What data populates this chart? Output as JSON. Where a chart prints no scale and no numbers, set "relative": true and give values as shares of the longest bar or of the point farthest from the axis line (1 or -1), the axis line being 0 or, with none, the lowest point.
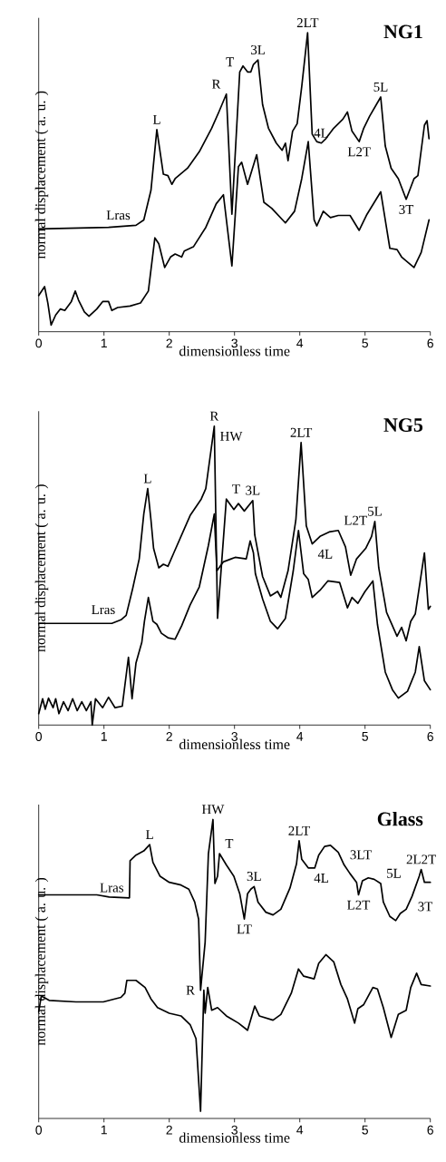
{
  "chart_data": [
    {
      "type": "line",
      "title": "NG1",
      "xlabel": "dimensionless time",
      "ylabel": "normal displacement ( a. u. )",
      "relative": true,
      "xlim": [
        0,
        6
      ],
      "xticks": [
        0,
        1,
        2,
        3,
        4,
        5,
        6
      ],
      "tick_labels": "x",
      "series": [
        {
          "color": "#000000",
          "x": [
            0,
            1.07,
            1.49,
            1.61,
            1.72,
            1.81,
            1.91,
            1.98,
            2.04,
            2.09,
            2.28,
            2.46,
            2.65,
            2.76,
            2.875,
            2.96,
            3.08,
            3.13,
            3.2,
            3.25,
            3.29,
            3.36,
            3.43,
            3.52,
            3.64,
            3.73,
            3.78,
            3.82,
            3.89,
            3.96,
            4.03,
            4.12,
            4.19,
            4.26,
            4.33,
            4.4,
            4.52,
            4.59,
            4.66,
            4.73,
            4.8,
            4.91,
            4.98,
            5.07,
            5.24,
            5.31,
            5.4,
            5.51,
            5.63,
            5.75,
            5.81,
            5.91,
            5.95,
            5.98
          ],
          "values": [
            0.344,
            0.349,
            0.356,
            0.374,
            0.473,
            0.676,
            0.527,
            0.522,
            0.493,
            0.512,
            0.547,
            0.602,
            0.681,
            0.735,
            0.795,
            0.393,
            0.869,
            0.889,
            0.869,
            0.869,
            0.894,
            0.909,
            0.76,
            0.681,
            0.631,
            0.607,
            0.631,
            0.572,
            0.671,
            0.696,
            0.82,
            1.0,
            0.661,
            0.636,
            0.631,
            0.646,
            0.681,
            0.696,
            0.711,
            0.735,
            0.671,
            0.636,
            0.681,
            0.721,
            0.785,
            0.621,
            0.547,
            0.512,
            0.443,
            0.512,
            0.522,
            0.691,
            0.706,
            0.646
          ]
        },
        {
          "color": "#000000",
          "x": [
            0,
            0.09,
            0.14,
            0.19,
            0.26,
            0.33,
            0.4,
            0.5,
            0.56,
            0.61,
            0.7,
            0.77,
            0.89,
            0.98,
            1.07,
            1.12,
            1.21,
            1.4,
            1.56,
            1.68,
            1.78,
            1.84,
            1.93,
            2.02,
            2.09,
            2.19,
            2.23,
            2.37,
            2.56,
            2.72,
            2.83,
            2.96,
            3.06,
            3.11,
            3.2,
            3.34,
            3.45,
            3.57,
            3.78,
            3.92,
            4.03,
            4.13,
            4.22,
            4.26,
            4.36,
            4.47,
            4.59,
            4.77,
            4.91,
            5.03,
            5.24,
            5.38,
            5.49,
            5.56,
            5.75,
            5.86,
            5.98
          ],
          "values": [
            0.121,
            0.151,
            0.096,
            0.022,
            0.056,
            0.076,
            0.071,
            0.101,
            0.136,
            0.106,
            0.066,
            0.052,
            0.076,
            0.101,
            0.101,
            0.071,
            0.081,
            0.086,
            0.096,
            0.136,
            0.314,
            0.294,
            0.215,
            0.25,
            0.26,
            0.25,
            0.27,
            0.284,
            0.349,
            0.428,
            0.458,
            0.22,
            0.552,
            0.567,
            0.493,
            0.592,
            0.433,
            0.413,
            0.364,
            0.403,
            0.512,
            0.636,
            0.374,
            0.354,
            0.403,
            0.382,
            0.389,
            0.389,
            0.339,
            0.393,
            0.468,
            0.279,
            0.275,
            0.25,
            0.215,
            0.265,
            0.374
          ]
        }
      ],
      "annotations": [
        {
          "text": "Lras",
          "x": 1.49,
          "y": 0.356
        },
        {
          "text": "L",
          "x": 1.81,
          "y": 0.676
        },
        {
          "text": "R",
          "x": 2.875,
          "y": 0.795
        },
        {
          "text": "T",
          "x": 3.08,
          "y": 0.869
        },
        {
          "text": "3L",
          "x": 3.36,
          "y": 0.909
        },
        {
          "text": "2LT",
          "x": 4.12,
          "y": 1.0
        },
        {
          "text": "4L",
          "x": 4.33,
          "y": 0.631
        },
        {
          "text": "5L",
          "x": 5.24,
          "y": 0.785
        },
        {
          "text": "L2T",
          "x": 4.91,
          "y": 0.636
        },
        {
          "text": "3T",
          "x": 5.63,
          "y": 0.443
        }
      ]
    },
    {
      "type": "line",
      "title": "NG5",
      "xlabel": "dimensionless time",
      "ylabel": "normal displacement ( a. u. )",
      "relative": true,
      "xlim": [
        0,
        6
      ],
      "xticks": [
        0,
        1,
        2,
        3,
        4,
        5,
        6
      ],
      "tick_labels": "x",
      "series": [
        {
          "color": "#000000",
          "x": [
            0,
            1.12,
            1.26,
            1.34,
            1.44,
            1.54,
            1.61,
            1.67,
            1.72,
            1.76,
            1.84,
            1.91,
            1.98,
            2.07,
            2.23,
            2.32,
            2.49,
            2.56,
            2.69,
            2.74,
            2.875,
            2.99,
            3.06,
            3.15,
            3.28,
            3.31,
            3.43,
            3.55,
            3.66,
            3.71,
            3.82,
            3.94,
            4.02,
            4.1,
            4.19,
            4.31,
            4.45,
            4.59,
            4.7,
            4.78,
            4.87,
            5.01,
            5.1,
            5.15,
            5.21,
            5.33,
            5.49,
            5.56,
            5.63,
            5.7,
            5.77,
            5.91,
            5.97,
            6.0
          ],
          "values": [
            0.34,
            0.34,
            0.352,
            0.367,
            0.457,
            0.556,
            0.706,
            0.791,
            0.686,
            0.591,
            0.526,
            0.538,
            0.531,
            0.576,
            0.656,
            0.701,
            0.756,
            0.791,
            1.0,
            0.357,
            0.756,
            0.721,
            0.741,
            0.716,
            0.751,
            0.636,
            0.497,
            0.432,
            0.447,
            0.427,
            0.516,
            0.686,
            0.945,
            0.666,
            0.606,
            0.631,
            0.646,
            0.651,
            0.596,
            0.501,
            0.556,
            0.591,
            0.631,
            0.681,
            0.526,
            0.377,
            0.297,
            0.327,
            0.282,
            0.347,
            0.372,
            0.576,
            0.387,
            0.397
          ]
        },
        {
          "color": "#000000",
          "x": [
            0,
            0.06,
            0.1,
            0.15,
            0.22,
            0.26,
            0.31,
            0.38,
            0.45,
            0.52,
            0.59,
            0.66,
            0.73,
            0.8,
            0.82,
            0.87,
            0.98,
            1.07,
            1.17,
            1.28,
            1.375,
            1.43,
            1.49,
            1.58,
            1.62,
            1.68,
            1.75,
            1.81,
            1.88,
            1.98,
            2.09,
            2.19,
            2.32,
            2.46,
            2.6,
            2.69,
            2.73,
            2.83,
            3.01,
            3.18,
            3.24,
            3.29,
            3.32,
            3.43,
            3.55,
            3.66,
            3.78,
            3.9,
            3.98,
            4.06,
            4.13,
            4.19,
            4.31,
            4.43,
            4.61,
            4.73,
            4.8,
            4.89,
            5.0,
            5.12,
            5.19,
            5.31,
            5.42,
            5.51,
            5.65,
            5.77,
            5.83,
            5.91,
            6.0
          ],
          "values": [
            0.038,
            0.088,
            0.053,
            0.09,
            0.058,
            0.088,
            0.038,
            0.078,
            0.048,
            0.088,
            0.048,
            0.078,
            0.048,
            0.078,
            0.0,
            0.088,
            0.058,
            0.093,
            0.058,
            0.063,
            0.227,
            0.088,
            0.207,
            0.277,
            0.347,
            0.427,
            0.347,
            0.337,
            0.307,
            0.292,
            0.287,
            0.332,
            0.402,
            0.462,
            0.601,
            0.706,
            0.516,
            0.546,
            0.561,
            0.556,
            0.616,
            0.576,
            0.506,
            0.422,
            0.347,
            0.322,
            0.357,
            0.516,
            0.651,
            0.506,
            0.487,
            0.427,
            0.451,
            0.482,
            0.477,
            0.392,
            0.427,
            0.407,
            0.447,
            0.482,
            0.337,
            0.177,
            0.118,
            0.09,
            0.113,
            0.177,
            0.262,
            0.148,
            0.118
          ]
        }
      ],
      "annotations": [
        {
          "text": "Lras",
          "x": 1.26,
          "y": 0.352
        },
        {
          "text": "L",
          "x": 1.67,
          "y": 0.791
        },
        {
          "text": "R",
          "x": 2.69,
          "y": 1.0
        },
        {
          "text": "HW",
          "x": 2.69,
          "y": 1.0
        },
        {
          "text": "T",
          "x": 2.875,
          "y": 0.756
        },
        {
          "text": "3L",
          "x": 3.28,
          "y": 0.751
        },
        {
          "text": "2LT",
          "x": 4.02,
          "y": 0.945
        },
        {
          "text": "4L",
          "x": 4.19,
          "y": 0.606
        },
        {
          "text": "L2T",
          "x": 4.59,
          "y": 0.651
        },
        {
          "text": "5L",
          "x": 5.15,
          "y": 0.681
        }
      ]
    },
    {
      "type": "line",
      "title": "Glass",
      "xlabel": "dimensionless time",
      "ylabel": "normal displacement ( a. u. )",
      "relative": true,
      "xlim": [
        0,
        6
      ],
      "xticks": [
        0,
        1,
        2,
        3,
        4,
        5,
        6
      ],
      "tick_labels": "x",
      "series": [
        {
          "color": "#000000",
          "x": [
            0,
            0.89,
            1.08,
            1.39,
            1.4,
            1.49,
            1.61,
            1.7,
            1.75,
            1.86,
            2.0,
            2.18,
            2.3,
            2.39,
            2.45,
            2.48,
            2.55,
            2.6,
            2.67,
            2.7,
            2.74,
            2.77,
            2.875,
            2.99,
            3.08,
            3.15,
            3.2,
            3.25,
            3.3,
            3.36,
            3.48,
            3.59,
            3.71,
            3.85,
            3.95,
            3.99,
            4.03,
            4.13,
            4.23,
            4.29,
            4.38,
            4.47,
            4.59,
            4.68,
            4.77,
            4.87,
            4.9,
            4.96,
            5.05,
            5.14,
            5.24,
            5.28,
            5.38,
            5.47,
            5.54,
            5.63,
            5.72,
            5.83,
            5.86,
            5.91,
            6.0
          ],
          "values": [
            0.748,
            0.748,
            0.741,
            0.738,
            0.862,
            0.881,
            0.895,
            0.916,
            0.857,
            0.81,
            0.79,
            0.781,
            0.767,
            0.724,
            0.667,
            0.429,
            0.59,
            0.886,
            1.0,
            0.786,
            0.81,
            0.886,
            0.848,
            0.81,
            0.752,
            0.667,
            0.752,
            0.767,
            0.776,
            0.724,
            0.69,
            0.681,
            0.7,
            0.771,
            0.852,
            0.929,
            0.867,
            0.838,
            0.838,
            0.881,
            0.91,
            0.914,
            0.89,
            0.848,
            0.819,
            0.79,
            0.748,
            0.795,
            0.805,
            0.8,
            0.786,
            0.724,
            0.676,
            0.662,
            0.686,
            0.7,
            0.743,
            0.81,
            0.833,
            0.79,
            0.79
          ]
        },
        {
          "color": "#000000",
          "x": [
            0,
            0.04,
            0.16,
            0.57,
            0.99,
            1.26,
            1.32,
            1.35,
            1.49,
            1.63,
            1.72,
            1.82,
            2.0,
            2.18,
            2.32,
            2.41,
            2.48,
            2.53,
            2.55,
            2.59,
            2.65,
            2.74,
            2.875,
            3.06,
            3.2,
            3.31,
            3.38,
            3.59,
            3.71,
            3.87,
            3.98,
            4.06,
            4.22,
            4.29,
            4.4,
            4.52,
            4.63,
            4.73,
            4.84,
            4.89,
            4.98,
            5.12,
            5.19,
            5.28,
            5.4,
            5.51,
            5.63,
            5.7,
            5.79,
            5.86,
            6.0
          ],
          "values": [
            0.357,
            0.41,
            0.395,
            0.39,
            0.39,
            0.405,
            0.419,
            0.462,
            0.462,
            0.438,
            0.4,
            0.371,
            0.352,
            0.343,
            0.314,
            0.267,
            0.024,
            0.429,
            0.352,
            0.438,
            0.362,
            0.371,
            0.343,
            0.319,
            0.295,
            0.376,
            0.343,
            0.329,
            0.348,
            0.419,
            0.5,
            0.476,
            0.467,
            0.519,
            0.548,
            0.524,
            0.448,
            0.4,
            0.319,
            0.367,
            0.381,
            0.438,
            0.433,
            0.371,
            0.271,
            0.348,
            0.362,
            0.438,
            0.486,
            0.448,
            0.443
          ]
        }
      ],
      "annotations": [
        {
          "text": "Lras",
          "x": 1.39,
          "y": 0.738
        },
        {
          "text": "L",
          "x": 1.7,
          "y": 0.916
        },
        {
          "text": "HW",
          "x": 2.67,
          "y": 1.0
        },
        {
          "text": "T",
          "x": 2.77,
          "y": 0.886
        },
        {
          "text": "R",
          "x": 2.48,
          "y": 0.429
        },
        {
          "text": "LT",
          "x": 3.15,
          "y": 0.667
        },
        {
          "text": "3L",
          "x": 3.3,
          "y": 0.776
        },
        {
          "text": "2LT",
          "x": 3.99,
          "y": 0.929
        },
        {
          "text": "4L",
          "x": 4.13,
          "y": 0.838
        },
        {
          "text": "3LT",
          "x": 4.68,
          "y": 0.848
        },
        {
          "text": "L2T",
          "x": 4.9,
          "y": 0.748
        },
        {
          "text": "5L",
          "x": 5.24,
          "y": 0.786
        },
        {
          "text": "2L2T",
          "x": 5.86,
          "y": 0.833
        },
        {
          "text": "3T",
          "x": 5.72,
          "y": 0.743
        }
      ]
    }
  ]
}
